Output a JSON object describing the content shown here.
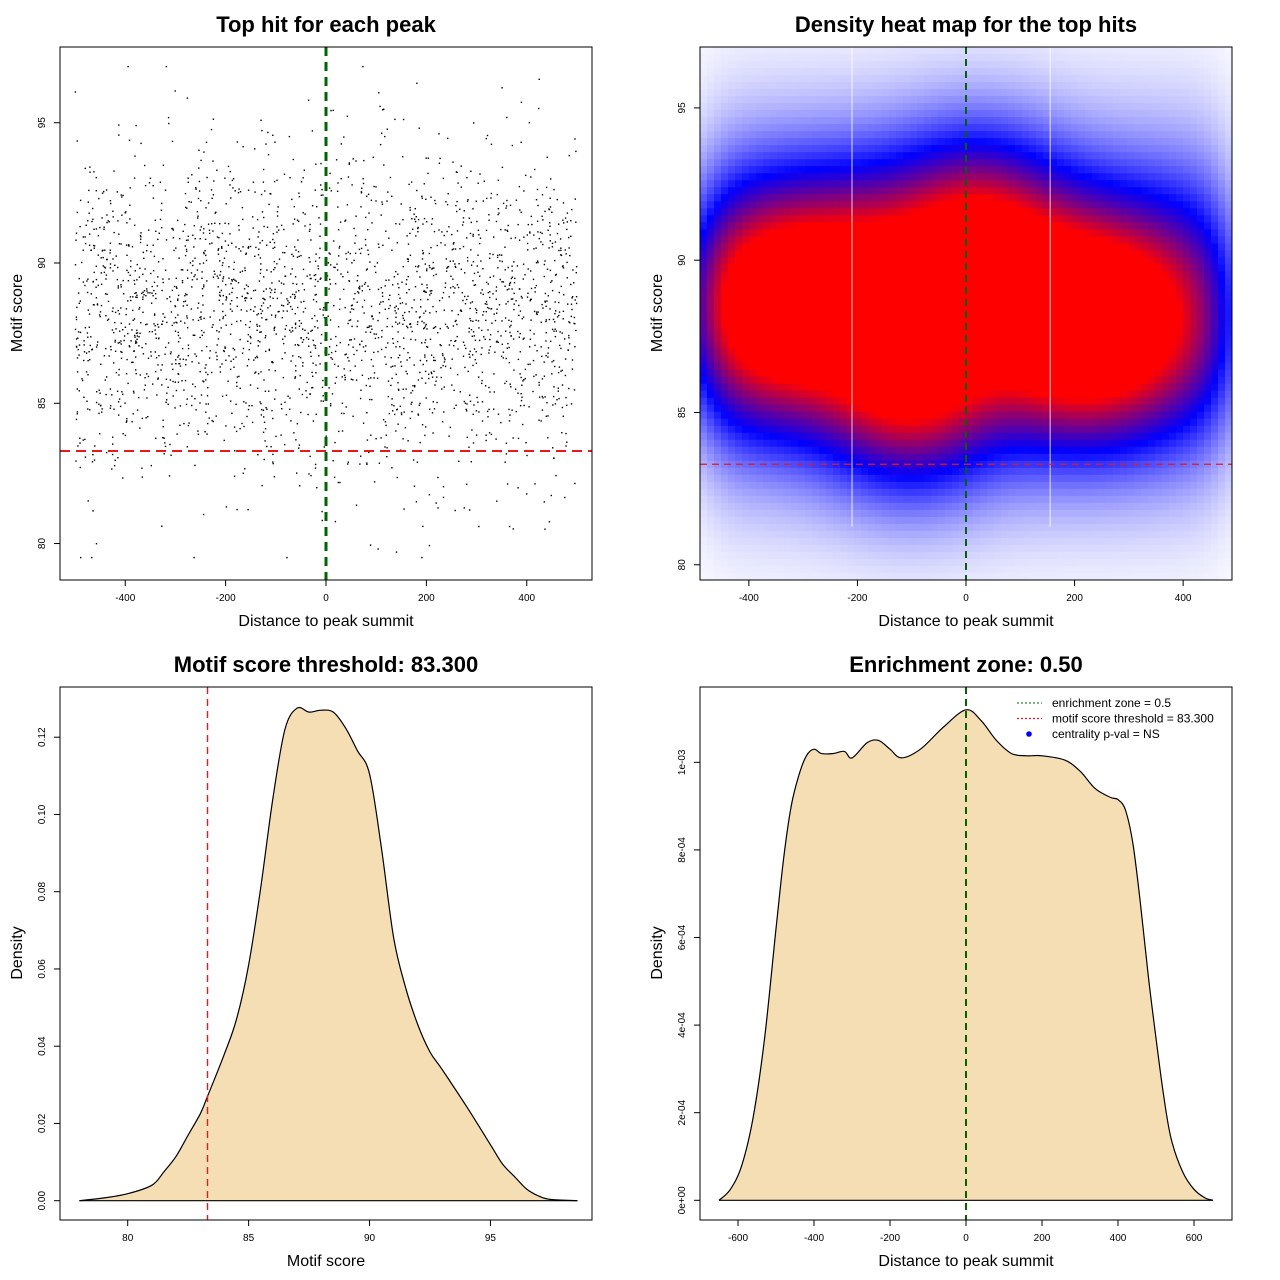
{
  "chart_data": [
    {
      "id": "scatter",
      "type": "scatter",
      "title": "Top hit for each peak",
      "xlabel": "Distance to peak summit",
      "ylabel": "Motif score",
      "xlim": [
        -530,
        530
      ],
      "ylim": [
        78.7,
        97.7
      ],
      "xticks": [
        -400,
        -200,
        0,
        200,
        400
      ],
      "xtick_labels": [
        "-400",
        "-200",
        "0",
        "200",
        "400"
      ],
      "yticks": [
        80,
        85,
        90,
        95
      ],
      "ytick_labels": [
        "80",
        "85",
        "90",
        "95"
      ],
      "n_points": 2600,
      "x_range": [
        -500,
        500
      ],
      "score_mean": 88.2,
      "score_sd": 2.9,
      "score_range": [
        79.5,
        97.0
      ],
      "vline": {
        "x": 0,
        "color": "#006400",
        "style": "dashed"
      },
      "hline": {
        "y": 83.3,
        "color": "#e41a1c",
        "style": "dashed"
      }
    },
    {
      "id": "heatmap",
      "type": "heatmap",
      "title": "Density heat map for the top hits",
      "xlabel": "Distance to peak summit",
      "ylabel": "Motif score",
      "xlim": [
        -490,
        490
      ],
      "ylim": [
        79.5,
        97.0
      ],
      "xticks": [
        -400,
        -200,
        0,
        200,
        400
      ],
      "xtick_labels": [
        "-400",
        "-200",
        "0",
        "200",
        "400"
      ],
      "yticks": [
        80,
        85,
        90,
        95
      ],
      "ytick_labels": [
        "80",
        "85",
        "90",
        "95"
      ],
      "color_scale": [
        "#ffffff",
        "#0000ff",
        "#ff0000"
      ],
      "density_modes": [
        {
          "x": -360,
          "y": 88.5,
          "weight": 1.0
        },
        {
          "x": -100,
          "y": 86.3,
          "weight": 0.95
        },
        {
          "x": 20,
          "y": 90.3,
          "weight": 1.0
        },
        {
          "x": 190,
          "y": 87.8,
          "weight": 1.0
        },
        {
          "x": -200,
          "y": 89.3,
          "weight": 0.65
        },
        {
          "x": 320,
          "y": 88.0,
          "weight": 0.6
        }
      ],
      "vline": {
        "x": 0,
        "color": "#006400",
        "style": "dashed"
      },
      "hline": {
        "y": 83.3,
        "color": "#e41a1c",
        "style": "dashed"
      }
    },
    {
      "id": "score_density",
      "type": "area",
      "title": "Motif score threshold: 83.300",
      "xlabel": "Motif score",
      "ylabel": "Density",
      "xlim": [
        77.2,
        99.2
      ],
      "ylim": [
        -0.005,
        0.133
      ],
      "xticks": [
        80,
        85,
        90,
        95
      ],
      "xtick_labels": [
        "80",
        "85",
        "90",
        "95"
      ],
      "yticks": [
        0,
        0.02,
        0.04,
        0.06,
        0.08,
        0.1,
        0.12
      ],
      "ytick_labels": [
        "0.00",
        "0.02",
        "0.04",
        "0.06",
        "0.08",
        "0.10",
        "0.12"
      ],
      "fill": "#f5deb3",
      "x": [
        78.0,
        79.0,
        80.0,
        81.0,
        81.5,
        82.0,
        82.5,
        83.0,
        83.3,
        84.0,
        84.5,
        85.0,
        85.5,
        86.0,
        86.5,
        87.0,
        87.5,
        88.0,
        88.5,
        89.0,
        89.5,
        90.0,
        90.5,
        91.0,
        91.5,
        92.0,
        92.5,
        93.0,
        94.0,
        95.0,
        95.5,
        96.0,
        96.5,
        97.0,
        97.5,
        98.6
      ],
      "y": [
        0.0,
        0.0007,
        0.0018,
        0.004,
        0.0075,
        0.0115,
        0.017,
        0.0225,
        0.027,
        0.038,
        0.047,
        0.061,
        0.081,
        0.104,
        0.122,
        0.1275,
        0.1265,
        0.127,
        0.1265,
        0.1225,
        0.1165,
        0.1105,
        0.091,
        0.068,
        0.055,
        0.0455,
        0.0385,
        0.034,
        0.0245,
        0.0145,
        0.0095,
        0.0062,
        0.003,
        0.0012,
        0.0003,
        0.0
      ],
      "vline": {
        "x": 83.3,
        "color": "#e41a1c",
        "style": "dashed"
      }
    },
    {
      "id": "distance_density",
      "type": "area",
      "title": "Enrichment zone: 0.50",
      "xlabel": "Distance to peak summit",
      "ylabel": "Density",
      "xlim": [
        -700,
        700
      ],
      "ylim": [
        -4.5e-05,
        0.001172
      ],
      "xticks": [
        -600,
        -400,
        -200,
        0,
        200,
        400,
        600
      ],
      "xtick_labels": [
        "-600",
        "-400",
        "-200",
        "0",
        "200",
        "400",
        "600"
      ],
      "yticks": [
        0,
        0.0002,
        0.0004,
        0.0006,
        0.0008,
        0.001
      ],
      "ytick_labels": [
        "0e+00",
        "2e-04",
        "4e-04",
        "6e-04",
        "8e-04",
        "1e-03"
      ],
      "fill": "#f5deb3",
      "x": [
        -650,
        -620,
        -590,
        -560,
        -530,
        -500,
        -480,
        -460,
        -440,
        -420,
        -400,
        -380,
        -350,
        -320,
        -300,
        -260,
        -230,
        -200,
        -170,
        -120,
        -60,
        0,
        40,
        80,
        120,
        160,
        200,
        260,
        300,
        340,
        380,
        400,
        420,
        440,
        460,
        480,
        500,
        520,
        540,
        570,
        600,
        630,
        650
      ],
      "y": [
        0.0,
        2.5e-05,
        8e-05,
        0.00019,
        0.00037,
        0.00062,
        0.00078,
        0.0009,
        0.00097,
        0.001015,
        0.00103,
        0.00102,
        0.00102,
        0.001025,
        0.00101,
        0.001045,
        0.00105,
        0.00103,
        0.00101,
        0.00103,
        0.00108,
        0.00112,
        0.001095,
        0.00105,
        0.00102,
        0.001015,
        0.001015,
        0.001005,
        0.00098,
        0.00094,
        0.00092,
        0.000915,
        0.00089,
        0.00081,
        0.00067,
        0.00051,
        0.00037,
        0.00024,
        0.00014,
        6.5e-05,
        2.5e-05,
        5e-06,
        0.0
      ],
      "vline": {
        "x": 0,
        "color": "#006400",
        "style": "dashed"
      },
      "legend": {
        "placement": "top-right",
        "entries": [
          {
            "label": "enrichment zone = 0.5",
            "color": "#2e8b2e",
            "kind": "dotted-line"
          },
          {
            "label": "motif score threshold = 83.300",
            "color": "#e41a1c",
            "kind": "dotted-line"
          },
          {
            "label": "centrality p-val = NS",
            "color": "#0000ff",
            "kind": "point"
          }
        ]
      }
    }
  ]
}
